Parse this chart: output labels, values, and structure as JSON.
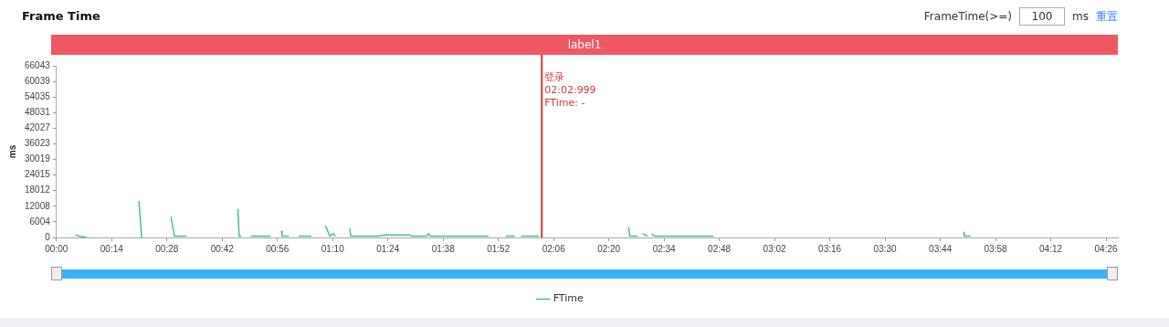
{
  "chart_data": {
    "type": "line",
    "title": "Frame Time",
    "ylabel": "ms",
    "x": [
      4.8,
      5.8,
      7.7,
      null,
      20.9,
      21.6,
      null,
      29.0,
      29.9,
      31.3,
      33.0,
      null,
      46.0,
      46.3,
      46.9,
      null,
      49.3,
      50.4,
      52.1,
      53.1,
      54.2,
      null,
      57.0,
      57.2,
      58.9,
      null,
      61.4,
      62.5,
      64.6,
      null,
      68.2,
      69.3,
      70.1,
      70.7,
      null,
      74.3,
      74.6,
      75.3,
      77.7,
      79.6,
      81.5,
      83.2,
      89.5,
      90.0,
      93.8,
      94.3,
      94.7,
      95.6,
      103.2,
      105.1,
      107.0,
      108.9,
      109.5,
      null,
      113.9,
      116.2,
      null,
      117.7,
      119.3,
      121.2,
      122.3,
      null,
      145.0,
      145.3,
      146.4,
      147.3,
      null,
      148.6,
      149.8,
      null,
      150.8,
      151.6,
      153.4,
      155.3,
      158.1,
      161.0,
      163.8,
      166.6,
      null,
      229.9,
      230.1,
      231.7
    ],
    "series": [
      {
        "name": "FTime",
        "color": "#52bc93",
        "values": [
          1000,
          500,
          0,
          null,
          14000,
          0,
          null,
          8000,
          500,
          500,
          500,
          null,
          11000,
          500,
          500,
          null,
          500,
          500,
          500,
          500,
          500,
          null,
          2500,
          500,
          500,
          null,
          500,
          500,
          500,
          null,
          4500,
          500,
          1500,
          500,
          null,
          3500,
          500,
          500,
          500,
          500,
          500,
          1000,
          1000,
          500,
          500,
          1500,
          500,
          500,
          500,
          500,
          500,
          500,
          500,
          null,
          500,
          500,
          null,
          500,
          500,
          500,
          500,
          null,
          4000,
          500,
          500,
          500,
          null,
          1500,
          500,
          null,
          1500,
          500,
          500,
          500,
          500,
          500,
          500,
          500,
          null,
          2000,
          500,
          500
        ]
      }
    ],
    "xlim": [
      0,
      269
    ],
    "xticks": [
      {
        "value": 0,
        "label": "00:00"
      },
      {
        "value": 14,
        "label": "00:14"
      },
      {
        "value": 28,
        "label": "00:28"
      },
      {
        "value": 42,
        "label": "00:42"
      },
      {
        "value": 56,
        "label": "00:56"
      },
      {
        "value": 70,
        "label": "01:10"
      },
      {
        "value": 84,
        "label": "01:24"
      },
      {
        "value": 98,
        "label": "01:38"
      },
      {
        "value": 112,
        "label": "01:52"
      },
      {
        "value": 126,
        "label": "02:06"
      },
      {
        "value": 140,
        "label": "02:20"
      },
      {
        "value": 154,
        "label": "02:34"
      },
      {
        "value": 168,
        "label": "02:48"
      },
      {
        "value": 182,
        "label": "03:02"
      },
      {
        "value": 196,
        "label": "03:16"
      },
      {
        "value": 210,
        "label": "03:30"
      },
      {
        "value": 224,
        "label": "03:44"
      },
      {
        "value": 238,
        "label": "03:58"
      },
      {
        "value": 252,
        "label": "04:12"
      },
      {
        "value": 266,
        "label": "04:26"
      }
    ],
    "ylim": [
      0,
      66043
    ],
    "yticks": [
      0,
      6004,
      12008,
      18012,
      24015,
      30019,
      36023,
      42027,
      48031,
      54035,
      60039,
      66043
    ],
    "ref_lines": [
      {
        "axis": "x",
        "value": 123,
        "label": "登录",
        "color": "#d9363e"
      }
    ],
    "annotations": [
      "FrameTime(>=)",
      "100",
      "ms",
      "重置",
      "label1",
      "02:02:999",
      "FTime: -"
    ],
    "grid": false,
    "legend": "bottom",
    "marker": "none",
    "line_style": "solid"
  }
}
